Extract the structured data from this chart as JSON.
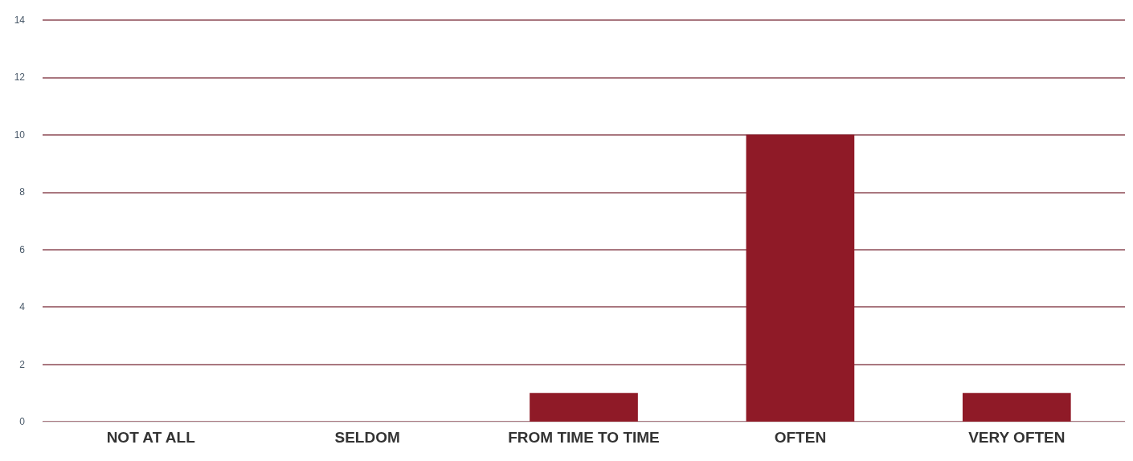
{
  "chart_data": {
    "type": "bar",
    "categories": [
      "NOT AT ALL",
      "SELDOM",
      "FROM TIME TO TIME",
      "OFTEN",
      "VERY OFTEN"
    ],
    "values": [
      0,
      0,
      1,
      10,
      1
    ],
    "color": "#8f1a27",
    "ylim": [
      0,
      14
    ],
    "yticks": [
      0,
      2,
      4,
      6,
      8,
      10,
      12,
      14
    ],
    "grid": "y"
  }
}
